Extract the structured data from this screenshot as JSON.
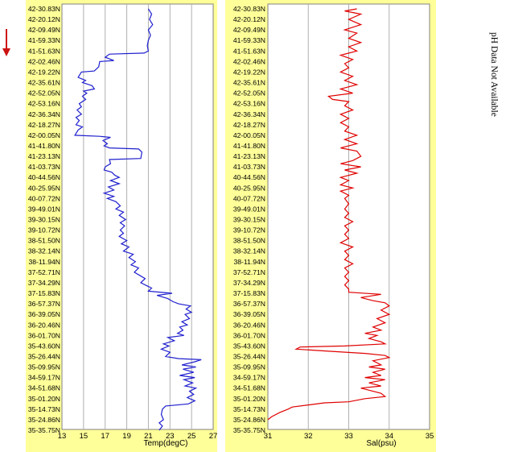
{
  "side_note": "pH Data Not Available",
  "colors": {
    "temp_line": "#1f1fcf",
    "sal_line": "#e00000",
    "arrow": "#cc1111",
    "panel": "#ffff99"
  },
  "icons": {
    "direction": "red-down-arrow-icon"
  },
  "latitudes": [
    "42-30.83N",
    "42-20.12N",
    "42-09.49N",
    "41-59.33N",
    "41-51.63N",
    "42-02.46N",
    "42-19.22N",
    "42-35.61N",
    "42-52.05N",
    "42-53.16N",
    "42-36.34N",
    "42-18.27N",
    "42-00.05N",
    "41-41.80N",
    "41-23.13N",
    "41-03.73N",
    "40-44.56N",
    "40-25.95N",
    "40-07.72N",
    "39-49.01N",
    "39-30.15N",
    "39-10.72N",
    "38-51.50N",
    "38-32.14N",
    "38-11.94N",
    "37-52.71N",
    "37-34.29N",
    "37-15.83N",
    "36-57.37N",
    "36-39.05N",
    "36-20.46N",
    "36-01.70N",
    "35-43.60N",
    "35-26.44N",
    "35-09.95N",
    "34-59.17N",
    "34-51.68N",
    "35-01.20N",
    "35-14.73N",
    "35-24.86N",
    "35-35.75N"
  ],
  "chart_data": [
    {
      "type": "line",
      "xlabel": "Temp(degC)",
      "xlim": [
        13,
        27
      ],
      "xticks": [
        "13",
        "15",
        "17",
        "19",
        "21",
        "23",
        "25",
        "27"
      ],
      "series": [
        {
          "values": [
            [
              21.0,
              0
            ],
            [
              21.3,
              0.5
            ],
            [
              21.1,
              1
            ],
            [
              21.4,
              1.5
            ],
            [
              21.0,
              2
            ],
            [
              21.2,
              2.5
            ],
            [
              21.0,
              3
            ],
            [
              20.9,
              3.5
            ],
            [
              21.0,
              4
            ],
            [
              20.6,
              4.2
            ],
            [
              17.4,
              4.3
            ],
            [
              17.0,
              4.6
            ],
            [
              17.8,
              4.9
            ],
            [
              16.5,
              5
            ],
            [
              16.4,
              5.5
            ],
            [
              16.0,
              5.9
            ],
            [
              14.8,
              6
            ],
            [
              14.5,
              6.5
            ],
            [
              15.2,
              6.8
            ],
            [
              14.9,
              7
            ],
            [
              15.5,
              7.2
            ],
            [
              15.8,
              7.3
            ],
            [
              16.0,
              7.6
            ],
            [
              15.0,
              7.8
            ],
            [
              15.3,
              8
            ],
            [
              14.9,
              8.3
            ],
            [
              15.2,
              8.6
            ],
            [
              14.6,
              9
            ],
            [
              14.8,
              9.3
            ],
            [
              14.4,
              9.6
            ],
            [
              14.8,
              10
            ],
            [
              14.3,
              10.3
            ],
            [
              14.6,
              10.6
            ],
            [
              14.3,
              11
            ],
            [
              14.9,
              11.2
            ],
            [
              14.5,
              11.5
            ],
            [
              14.2,
              12
            ],
            [
              16.5,
              12.1
            ],
            [
              17.5,
              12.2
            ],
            [
              16.8,
              12.5
            ],
            [
              17.2,
              12.8
            ],
            [
              16.9,
              13
            ],
            [
              17.4,
              13.2
            ],
            [
              20.1,
              13.3
            ],
            [
              20.4,
              13.6
            ],
            [
              20.3,
              14.2
            ],
            [
              17.4,
              14.3
            ],
            [
              17.5,
              14.7
            ],
            [
              17.0,
              15
            ],
            [
              16.9,
              15.3
            ],
            [
              17.6,
              15.5
            ],
            [
              17.9,
              15.8
            ],
            [
              18.3,
              16
            ],
            [
              17.5,
              16.3
            ],
            [
              18.3,
              16.6
            ],
            [
              17.3,
              16.9
            ],
            [
              17.8,
              17.2
            ],
            [
              16.9,
              17.5
            ],
            [
              17.8,
              17.8
            ],
            [
              17.2,
              18
            ],
            [
              18.0,
              18.3
            ],
            [
              18.4,
              18.7
            ],
            [
              18.0,
              19
            ],
            [
              18.7,
              19.3
            ],
            [
              18.3,
              19.6
            ],
            [
              18.9,
              20
            ],
            [
              18.4,
              20.3
            ],
            [
              18.8,
              20.6
            ],
            [
              18.4,
              21
            ],
            [
              18.7,
              21.3
            ],
            [
              18.3,
              21.6
            ],
            [
              19.0,
              22
            ],
            [
              18.5,
              22.3
            ],
            [
              19.2,
              22.6
            ],
            [
              18.7,
              23
            ],
            [
              19.6,
              23.3
            ],
            [
              19.2,
              23.6
            ],
            [
              19.8,
              24
            ],
            [
              19.4,
              24.3
            ],
            [
              20.1,
              24.6
            ],
            [
              19.7,
              25
            ],
            [
              20.2,
              25.3
            ],
            [
              20.7,
              25.6
            ],
            [
              20.3,
              26
            ],
            [
              20.9,
              26.3
            ],
            [
              21.3,
              26.5
            ],
            [
              21.0,
              26.8
            ],
            [
              23.2,
              27
            ],
            [
              21.8,
              27.2
            ],
            [
              22.8,
              27.5
            ],
            [
              23.3,
              27.8
            ],
            [
              23.8,
              28
            ],
            [
              24.9,
              28.2
            ],
            [
              24.5,
              28.5
            ],
            [
              25.0,
              28.8
            ],
            [
              24.4,
              29
            ],
            [
              24.8,
              29.4
            ],
            [
              24.1,
              29.7
            ],
            [
              24.6,
              30
            ],
            [
              23.9,
              30.2
            ],
            [
              24.2,
              30.5
            ],
            [
              23.7,
              30.8
            ],
            [
              24.3,
              31
            ],
            [
              22.8,
              31.2
            ],
            [
              23.4,
              31.5
            ],
            [
              22.4,
              31.8
            ],
            [
              22.9,
              32
            ],
            [
              22.2,
              32.3
            ],
            [
              23.0,
              32.6
            ],
            [
              22.6,
              33
            ],
            [
              23.8,
              33.2
            ],
            [
              25.9,
              33.3
            ],
            [
              25.3,
              33.5
            ],
            [
              24.1,
              33.8
            ],
            [
              25.4,
              34
            ],
            [
              24.2,
              34.2
            ],
            [
              25.2,
              34.5
            ],
            [
              23.9,
              34.8
            ],
            [
              25.3,
              35
            ],
            [
              24.3,
              35.2
            ],
            [
              25.1,
              35.5
            ],
            [
              24.4,
              35.8
            ],
            [
              25.4,
              36
            ],
            [
              24.8,
              36.3
            ],
            [
              25.2,
              36.6
            ],
            [
              24.6,
              36.9
            ],
            [
              25.3,
              37.2
            ],
            [
              24.7,
              37.5
            ],
            [
              22.6,
              37.7
            ],
            [
              22.3,
              38
            ],
            [
              22.2,
              38.5
            ],
            [
              22.4,
              39
            ],
            [
              22.0,
              39.3
            ],
            [
              22.3,
              39.6
            ],
            [
              22.0,
              40
            ]
          ]
        }
      ]
    },
    {
      "type": "line",
      "xlabel": "Sal(psu)",
      "xlim": [
        31,
        35
      ],
      "xticks": [
        "31",
        "32",
        "33",
        "34",
        "35"
      ],
      "series": [
        {
          "values": [
            [
              33.2,
              0
            ],
            [
              32.9,
              0.2
            ],
            [
              33.3,
              0.5
            ],
            [
              33.0,
              1
            ],
            [
              33.3,
              1.5
            ],
            [
              32.9,
              2
            ],
            [
              33.2,
              2.3
            ],
            [
              33.0,
              2.8
            ],
            [
              33.3,
              3.2
            ],
            [
              33.0,
              3.6
            ],
            [
              33.2,
              4
            ],
            [
              32.8,
              4.4
            ],
            [
              33.1,
              4.8
            ],
            [
              32.9,
              5.2
            ],
            [
              33.0,
              5.6
            ],
            [
              32.8,
              6
            ],
            [
              33.1,
              6.4
            ],
            [
              32.9,
              6.8
            ],
            [
              33.2,
              7.2
            ],
            [
              32.8,
              7.6
            ],
            [
              33.1,
              8
            ],
            [
              32.5,
              8.3
            ],
            [
              32.6,
              8.6
            ],
            [
              33.0,
              8.8
            ],
            [
              32.9,
              9.2
            ],
            [
              33.1,
              9.6
            ],
            [
              32.8,
              10
            ],
            [
              33.0,
              10.4
            ],
            [
              32.8,
              10.8
            ],
            [
              33.0,
              11.2
            ],
            [
              32.9,
              11.6
            ],
            [
              33.2,
              12
            ],
            [
              32.9,
              12.4
            ],
            [
              33.2,
              12.8
            ],
            [
              32.8,
              13.2
            ],
            [
              33.2,
              13.5
            ],
            [
              33.3,
              14
            ],
            [
              33.1,
              14.4
            ],
            [
              32.8,
              14.7
            ],
            [
              33.3,
              15
            ],
            [
              32.9,
              15.3
            ],
            [
              33.2,
              15.6
            ],
            [
              32.8,
              16
            ],
            [
              33.0,
              16.3
            ],
            [
              32.8,
              16.7
            ],
            [
              33.1,
              17
            ],
            [
              32.8,
              17.3
            ],
            [
              33.0,
              17.7
            ],
            [
              32.9,
              18
            ],
            [
              33.0,
              18.5
            ],
            [
              32.9,
              19
            ],
            [
              33.0,
              19.4
            ],
            [
              32.9,
              19.8
            ],
            [
              33.1,
              20.2
            ],
            [
              32.9,
              20.6
            ],
            [
              33.0,
              21
            ],
            [
              32.9,
              21.4
            ],
            [
              33.0,
              21.8
            ],
            [
              32.8,
              22.2
            ],
            [
              33.1,
              22.6
            ],
            [
              32.9,
              23
            ],
            [
              33.0,
              23.4
            ],
            [
              32.9,
              23.8
            ],
            [
              33.1,
              24.2
            ],
            [
              32.9,
              24.6
            ],
            [
              33.0,
              25
            ],
            [
              32.9,
              25.4
            ],
            [
              33.0,
              25.8
            ],
            [
              32.9,
              26.2
            ],
            [
              33.0,
              26.6
            ],
            [
              33.0,
              26.9
            ],
            [
              33.8,
              27.1
            ],
            [
              33.3,
              27.4
            ],
            [
              33.6,
              27.7
            ],
            [
              33.9,
              27.9
            ],
            [
              34.0,
              28.2
            ],
            [
              33.8,
              28.6
            ],
            [
              34.0,
              29
            ],
            [
              33.7,
              29.4
            ],
            [
              33.9,
              29.8
            ],
            [
              33.6,
              30.2
            ],
            [
              33.8,
              30.5
            ],
            [
              33.4,
              30.8
            ],
            [
              33.7,
              31
            ],
            [
              33.5,
              31.3
            ],
            [
              33.8,
              31.6
            ],
            [
              33.9,
              31.8
            ],
            [
              32.9,
              32
            ],
            [
              31.8,
              32.1
            ],
            [
              31.7,
              32.3
            ],
            [
              32.5,
              32.5
            ],
            [
              33.4,
              32.7
            ],
            [
              33.9,
              32.9
            ],
            [
              34.0,
              33.1
            ],
            [
              33.6,
              33.4
            ],
            [
              33.8,
              33.8
            ],
            [
              33.5,
              34
            ],
            [
              33.9,
              34.2
            ],
            [
              33.6,
              34.5
            ],
            [
              33.8,
              34.8
            ],
            [
              33.4,
              35
            ],
            [
              33.9,
              35.2
            ],
            [
              33.5,
              35.5
            ],
            [
              33.8,
              35.8
            ],
            [
              33.3,
              36
            ],
            [
              33.6,
              36.3
            ],
            [
              33.8,
              36.5
            ],
            [
              33.9,
              36.8
            ],
            [
              33.4,
              37
            ],
            [
              33.0,
              37.3
            ],
            [
              32.4,
              37.4
            ],
            [
              32.0,
              37.6
            ],
            [
              31.6,
              37.8
            ],
            [
              31.5,
              38
            ],
            [
              31.3,
              38.3
            ],
            [
              31.1,
              38.7
            ],
            [
              31.0,
              39
            ]
          ]
        }
      ]
    }
  ]
}
